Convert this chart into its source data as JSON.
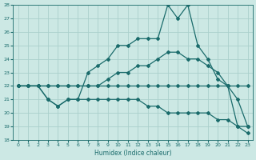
{
  "xlabel": "Humidex (Indice chaleur)",
  "bg_color": "#cce8e4",
  "grid_color": "#aacfcc",
  "line_color": "#1a6b6b",
  "xlim": [
    -0.5,
    23.5
  ],
  "ylim": [
    18,
    28
  ],
  "xticks": [
    0,
    1,
    2,
    3,
    4,
    5,
    6,
    7,
    8,
    9,
    10,
    11,
    12,
    13,
    14,
    15,
    16,
    17,
    18,
    19,
    20,
    21,
    22,
    23
  ],
  "yticks": [
    18,
    19,
    20,
    21,
    22,
    23,
    24,
    25,
    26,
    27,
    28
  ],
  "line1_x": [
    0,
    1,
    2,
    3,
    4,
    5,
    6,
    7,
    8,
    9,
    10,
    11,
    12,
    13,
    14,
    15,
    16,
    17,
    18,
    19,
    20,
    21,
    22,
    23
  ],
  "line1_y": [
    22,
    22,
    22,
    22,
    22,
    22,
    22,
    22,
    22,
    22,
    22,
    22,
    22,
    22,
    22,
    22,
    22,
    22,
    22,
    22,
    22,
    22,
    22,
    22
  ],
  "line2_x": [
    0,
    1,
    2,
    3,
    4,
    5,
    6,
    7,
    8,
    9,
    10,
    11,
    12,
    13,
    14,
    15,
    16,
    17,
    18,
    19,
    20,
    21,
    22,
    23
  ],
  "line2_y": [
    22,
    22,
    22,
    22,
    22,
    22,
    22,
    22,
    22,
    22.5,
    23,
    23,
    23.5,
    23.5,
    24,
    24.5,
    24.5,
    24,
    24,
    23.5,
    23,
    22,
    21,
    19
  ],
  "line3_x": [
    0,
    2,
    3,
    4,
    5,
    6,
    7,
    8,
    9,
    10,
    11,
    12,
    13,
    14,
    15,
    16,
    17,
    18,
    19,
    20,
    21,
    22,
    23
  ],
  "line3_y": [
    22,
    22,
    21,
    20.5,
    21,
    21,
    23,
    23.5,
    24,
    25,
    25,
    25.5,
    25.5,
    25.5,
    28,
    27,
    28,
    25,
    24,
    22.5,
    22,
    19,
    19
  ],
  "line4_x": [
    0,
    1,
    2,
    3,
    4,
    5,
    6,
    7,
    8,
    9,
    10,
    11,
    12,
    13,
    14,
    15,
    16,
    17,
    18,
    19,
    20,
    21,
    22,
    23
  ],
  "line4_y": [
    22,
    22,
    22,
    21,
    20.5,
    21,
    21,
    21,
    21,
    21,
    21,
    21,
    21,
    20.5,
    20.5,
    20,
    20,
    20,
    20,
    20,
    19.5,
    19.5,
    19,
    18.5
  ]
}
